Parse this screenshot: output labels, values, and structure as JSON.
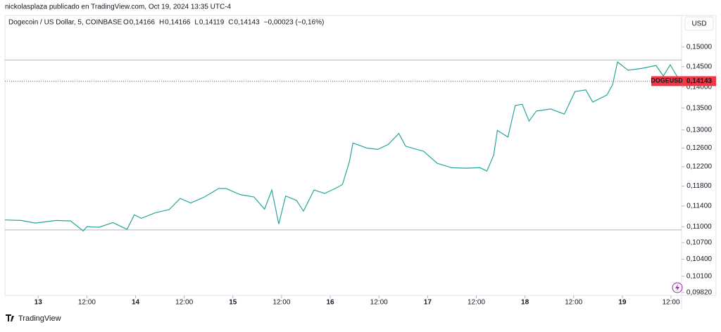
{
  "header": {
    "publisher": "nickolasplaza publicado en TradingView.com, Oct 19, 2024 13:35 UTC-4",
    "instrument": "Dogecoin / US Dollar, 5, COINBASE",
    "ohlc": [
      {
        "label": "O",
        "value": "0,14166"
      },
      {
        "label": "H",
        "value": "0,14166"
      },
      {
        "label": "L",
        "value": "0,14119"
      },
      {
        "label": "C",
        "value": "0,14143"
      }
    ],
    "change": "−0,00023 (−0,16%)",
    "currency": "USD"
  },
  "chart_data": {
    "type": "line",
    "log_scale": true,
    "x": [
      -8.2,
      -4.2,
      -0.7,
      4.5,
      8,
      11.1,
      12,
      15,
      18.4,
      21.9,
      23.7,
      25.4,
      28.9,
      32.3,
      35,
      37.6,
      41,
      44.5,
      46.3,
      49.7,
      53.2,
      55.8,
      57.6,
      59.3,
      61,
      63.7,
      65.4,
      68,
      70.6,
      73.2,
      75,
      76.7,
      77.6,
      81,
      83.7,
      86.3,
      88.9,
      90.6,
      95,
      98.4,
      101.9,
      105.4,
      108.9,
      110.6,
      112.3,
      113.2,
      115.8,
      117.6,
      119.3,
      121,
      122.8,
      126.3,
      129.7,
      132.3,
      135,
      136.7,
      140.2,
      141.6,
      142.8,
      145.4,
      148.9,
      152.3,
      154.1,
      155.8,
      157.6
    ],
    "series": [
      {
        "name": "DOGEUSD",
        "color": "#26a69a",
        "values": [
          0.1113,
          0.1112,
          0.1107,
          0.1112,
          0.1111,
          0.1092,
          0.11,
          0.1099,
          0.1108,
          0.1095,
          0.1123,
          0.1116,
          0.1127,
          0.1133,
          0.1155,
          0.1146,
          0.1158,
          0.1175,
          0.1175,
          0.1163,
          0.1158,
          0.1134,
          0.1172,
          0.1105,
          0.116,
          0.1151,
          0.113,
          0.1172,
          0.1165,
          0.1175,
          0.1183,
          0.123,
          0.1271,
          0.126,
          0.1257,
          0.1268,
          0.1292,
          0.1264,
          0.1253,
          0.1227,
          0.1218,
          0.1217,
          0.1218,
          0.1211,
          0.1245,
          0.1299,
          0.1284,
          0.1356,
          0.1359,
          0.132,
          0.1343,
          0.1348,
          0.1336,
          0.1389,
          0.1393,
          0.1364,
          0.1381,
          0.1406,
          0.1462,
          0.1441,
          0.1446,
          0.1453,
          0.1427,
          0.1455,
          0.1424
        ]
      }
    ],
    "last_price": {
      "value": 0.14143,
      "label": "0,14143",
      "color": "#f23645"
    },
    "hlines": [
      0.1467,
      0.1094
    ],
    "xlim": [
      -8.2,
      158.6
    ],
    "xticks": [
      {
        "value": 0,
        "label": "13"
      },
      {
        "value": 12,
        "label": "12:00"
      },
      {
        "value": 24,
        "label": "14"
      },
      {
        "value": 36,
        "label": "12:00"
      },
      {
        "value": 48,
        "label": "15"
      },
      {
        "value": 60,
        "label": "12:00"
      },
      {
        "value": 72,
        "label": "16"
      },
      {
        "value": 84,
        "label": "12:00"
      },
      {
        "value": 96,
        "label": "17"
      },
      {
        "value": 108,
        "label": "12:00"
      },
      {
        "value": 120,
        "label": "18"
      },
      {
        "value": 132,
        "label": "12:00"
      },
      {
        "value": 144,
        "label": "19"
      },
      {
        "value": 156,
        "label": "12:00"
      }
    ],
    "ylim": [
      0.0977,
      0.1584
    ],
    "yticks": [
      {
        "value": 0.15,
        "label": "0,15000"
      },
      {
        "value": 0.145,
        "label": "0,14500"
      },
      {
        "value": 0.14,
        "label": "0,14000"
      },
      {
        "value": 0.135,
        "label": "0,13500"
      },
      {
        "value": 0.13,
        "label": "0,13000"
      },
      {
        "value": 0.126,
        "label": "0,12600"
      },
      {
        "value": 0.122,
        "label": "0,12200"
      },
      {
        "value": 0.118,
        "label": "0,11800"
      },
      {
        "value": 0.114,
        "label": "0,11400"
      },
      {
        "value": 0.11,
        "label": "0,11000"
      },
      {
        "value": 0.107,
        "label": "0,10700"
      },
      {
        "value": 0.104,
        "label": "0,10400"
      },
      {
        "value": 0.101,
        "label": "0,10100"
      },
      {
        "value": 0.0982,
        "label": "0,09820"
      }
    ]
  },
  "footer": {
    "brand": "TradingView"
  }
}
